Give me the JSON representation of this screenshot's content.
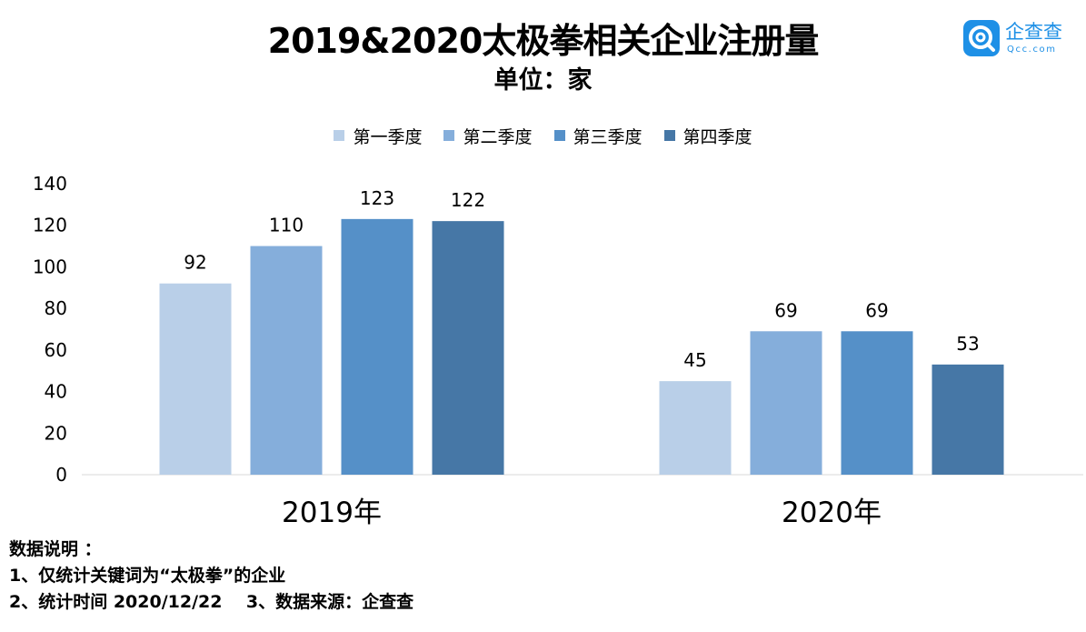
{
  "header": {
    "title": "2019&2020太极拳相关企业注册量",
    "subtitle": "单位：家"
  },
  "logo": {
    "icon": "qcc-logo-icon",
    "name": "企查查",
    "domain": "Qcc.com",
    "color": "#1e90e6"
  },
  "chart_data": {
    "type": "bar",
    "title": "2019&2020太极拳相关企业注册量",
    "subtitle": "单位：家",
    "categories": [
      "2019年",
      "2020年"
    ],
    "series": [
      {
        "name": "第一季度",
        "color": "#b9cfe8",
        "values": [
          92,
          45
        ]
      },
      {
        "name": "第二季度",
        "color": "#85aedb",
        "values": [
          110,
          69
        ]
      },
      {
        "name": "第三季度",
        "color": "#5590c8",
        "values": [
          123,
          69
        ]
      },
      {
        "name": "第四季度",
        "color": "#4677a6",
        "values": [
          122,
          53
        ]
      }
    ],
    "ylim": [
      0,
      140
    ],
    "yticks": [
      0,
      20,
      40,
      60,
      80,
      100,
      120,
      140
    ],
    "grid": false,
    "legend_position": "top-center",
    "data_labels": true
  },
  "notes": {
    "heading": "数据说明 ：",
    "line1": "1、仅统计关键词为“太极拳”的企业",
    "line2": "2、统计时间 2020/12/22    3、数据来源：企查查"
  }
}
